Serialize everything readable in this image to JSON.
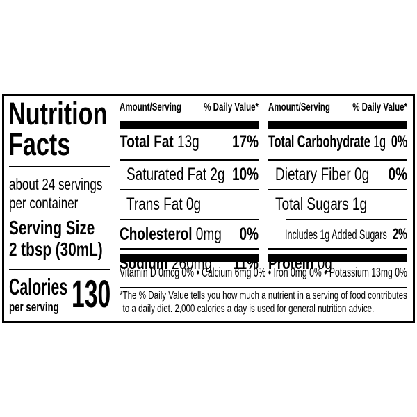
{
  "left": {
    "title_line1": "Nutrition",
    "title_line2": "Facts",
    "servings_line1": "about 24 servings",
    "servings_line2": "per container",
    "serving_size_label": "Serving Size",
    "serving_size_value": "2 tbsp (30mL)",
    "calories_label": "Calories",
    "calories_sub": "per serving",
    "calories_value": "130"
  },
  "columns": [
    {
      "header_amount": "Amount/Serving",
      "header_dv": "% Daily Value*",
      "rows": [
        {
          "name": "Total Fat",
          "amount": "13g",
          "dv": "17%",
          "bold": true,
          "indent": 0
        },
        {
          "name": "Saturated Fat",
          "amount": "2g",
          "dv": "10%",
          "bold": false,
          "indent": 1
        },
        {
          "name": "Trans Fat",
          "amount": "0g",
          "dv": "",
          "bold": false,
          "indent": 1
        },
        {
          "name": "Cholesterol",
          "amount": "0mg",
          "dv": "0%",
          "bold": true,
          "indent": 0
        },
        {
          "name": "Sodium",
          "amount": "260mg",
          "dv": "11%",
          "bold": true,
          "indent": 0
        }
      ]
    },
    {
      "header_amount": "Amount/Serving",
      "header_dv": "% Daily Value*",
      "rows": [
        {
          "name": "Total Carbohydrate",
          "amount": "1g",
          "dv": "0%",
          "bold": true,
          "indent": 0
        },
        {
          "name": "Dietary Fiber",
          "amount": "0g",
          "dv": "0%",
          "bold": false,
          "indent": 1
        },
        {
          "name": "Total Sugars",
          "amount": "1g",
          "dv": "",
          "bold": false,
          "indent": 1
        },
        {
          "name": "Includes 1g Added Sugars",
          "amount": "",
          "dv": "2%",
          "bold": false,
          "indent": 2
        },
        {
          "name": "Protein",
          "amount": "0g",
          "dv": "",
          "bold": true,
          "indent": 0
        }
      ]
    }
  ],
  "vitamins": "Vitamin D 0mcg 0% • Calcium 6mg 0% • Iron 0mg 0% • Potassium 13mg 0%",
  "footnote_line1": "*The % Daily Value tells you how much a nutrient in a serving of food contributes",
  "footnote_line2": "to a daily diet. 2,000 calories a day is used for general nutrition advice."
}
